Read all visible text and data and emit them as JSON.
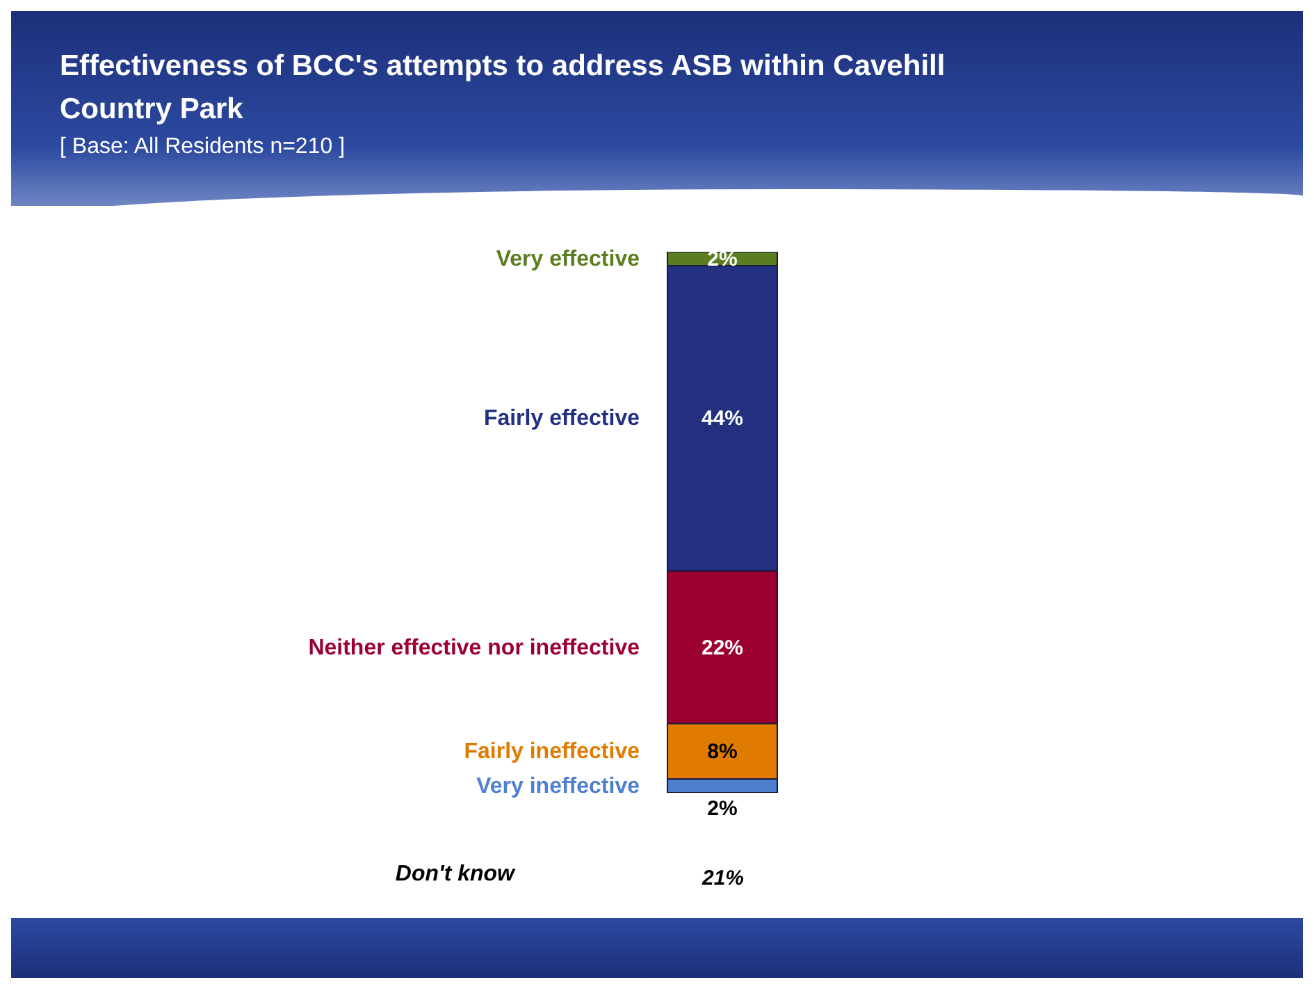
{
  "chart_data": {
    "type": "bar",
    "title": "Effectiveness of BCC's attempts to address ASB within Cavehill Country Park",
    "subtitle": "[ Base: All Residents n=210 ]",
    "categories": [
      null
    ],
    "stacked": true,
    "legend": false,
    "grid": false,
    "series": [
      {
        "name": "Very ineffective",
        "color": "#4f7fcf",
        "values": [
          2
        ],
        "value_labels": [
          "2%"
        ]
      },
      {
        "name": "Fairly ineffective",
        "color": "#e07b00",
        "values": [
          8
        ],
        "value_labels": [
          "8%"
        ]
      },
      {
        "name": "Neither effective nor ineffective",
        "color": "#9b0030",
        "values": [
          22
        ],
        "value_labels": [
          "22%"
        ]
      },
      {
        "name": "Fairly effective",
        "color": "#22307f",
        "values": [
          44
        ],
        "value_labels": [
          "44%"
        ]
      },
      {
        "name": "Very effective",
        "color": "#5b7d1f",
        "values": [
          2
        ],
        "value_labels": [
          "2%"
        ]
      }
    ],
    "annotations": [
      "Don't know",
      "21%"
    ]
  }
}
